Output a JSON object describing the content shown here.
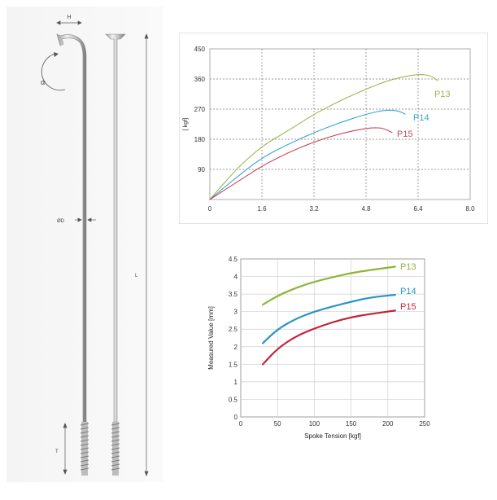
{
  "spoke_drawing": {
    "labels": {
      "head_width": "H",
      "bend_angle": "α",
      "diameter": "ØD",
      "length": "L",
      "thread": "T"
    }
  },
  "chart_data": [
    {
      "type": "line",
      "xlabel": "",
      "ylabel": "[ kgf]",
      "xlim": [
        0,
        8.0
      ],
      "ylim": [
        0,
        450
      ],
      "xticks": [
        "0",
        "1.6",
        "3.2",
        "4.8",
        "6.4",
        "8.0"
      ],
      "yticks": [
        "90",
        "180",
        "270",
        "360",
        "450"
      ],
      "grid": true,
      "series": [
        {
          "name": "P13",
          "color": "#9bb84a",
          "points": [
            [
              0,
              0
            ],
            [
              0.8,
              90
            ],
            [
              1.6,
              160
            ],
            [
              2.4,
              205
            ],
            [
              3.2,
              255
            ],
            [
              4.0,
              295
            ],
            [
              4.8,
              330
            ],
            [
              5.6,
              360
            ],
            [
              6.4,
              375
            ],
            [
              6.8,
              370
            ],
            [
              7.0,
              355
            ]
          ]
        },
        {
          "name": "P14",
          "color": "#3ba4d6",
          "points": [
            [
              0,
              0
            ],
            [
              0.8,
              65
            ],
            [
              1.6,
              125
            ],
            [
              2.4,
              165
            ],
            [
              3.2,
              200
            ],
            [
              4.0,
              230
            ],
            [
              4.8,
              255
            ],
            [
              5.4,
              268
            ],
            [
              5.8,
              265
            ],
            [
              6.0,
              255
            ]
          ]
        },
        {
          "name": "P15",
          "color": "#c9485a",
          "points": [
            [
              0,
              0
            ],
            [
              0.8,
              50
            ],
            [
              1.6,
              100
            ],
            [
              2.4,
              140
            ],
            [
              3.2,
              172
            ],
            [
              4.0,
              197
            ],
            [
              4.8,
              213
            ],
            [
              5.2,
              215
            ],
            [
              5.4,
              210
            ],
            [
              5.6,
              200
            ]
          ]
        }
      ]
    },
    {
      "type": "line",
      "xlabel": "Spoke Tension [kgf]",
      "ylabel": "Measured Value [mm]",
      "xlim": [
        0,
        250
      ],
      "ylim": [
        0,
        4.5
      ],
      "xticks": [
        "0",
        "50",
        "100",
        "150",
        "200",
        "250"
      ],
      "yticks": [
        "0",
        "0.5",
        "1",
        "1.5",
        "2",
        "2.5",
        "3",
        "3.5",
        "4",
        "4.5"
      ],
      "grid": true,
      "series": [
        {
          "name": "P13",
          "color": "#8fb43a",
          "points": [
            [
              30,
              3.2
            ],
            [
              50,
              3.45
            ],
            [
              75,
              3.68
            ],
            [
              100,
              3.85
            ],
            [
              125,
              3.98
            ],
            [
              150,
              4.1
            ],
            [
              175,
              4.18
            ],
            [
              210,
              4.28
            ]
          ]
        },
        {
          "name": "P14",
          "color": "#2a95c4",
          "points": [
            [
              30,
              2.1
            ],
            [
              50,
              2.5
            ],
            [
              75,
              2.8
            ],
            [
              100,
              3.0
            ],
            [
              125,
              3.15
            ],
            [
              150,
              3.28
            ],
            [
              175,
              3.4
            ],
            [
              210,
              3.48
            ]
          ]
        },
        {
          "name": "P15",
          "color": "#c1243f",
          "points": [
            [
              30,
              1.5
            ],
            [
              50,
              1.95
            ],
            [
              75,
              2.3
            ],
            [
              100,
              2.52
            ],
            [
              125,
              2.7
            ],
            [
              150,
              2.84
            ],
            [
              175,
              2.93
            ],
            [
              210,
              3.03
            ]
          ]
        }
      ]
    }
  ]
}
